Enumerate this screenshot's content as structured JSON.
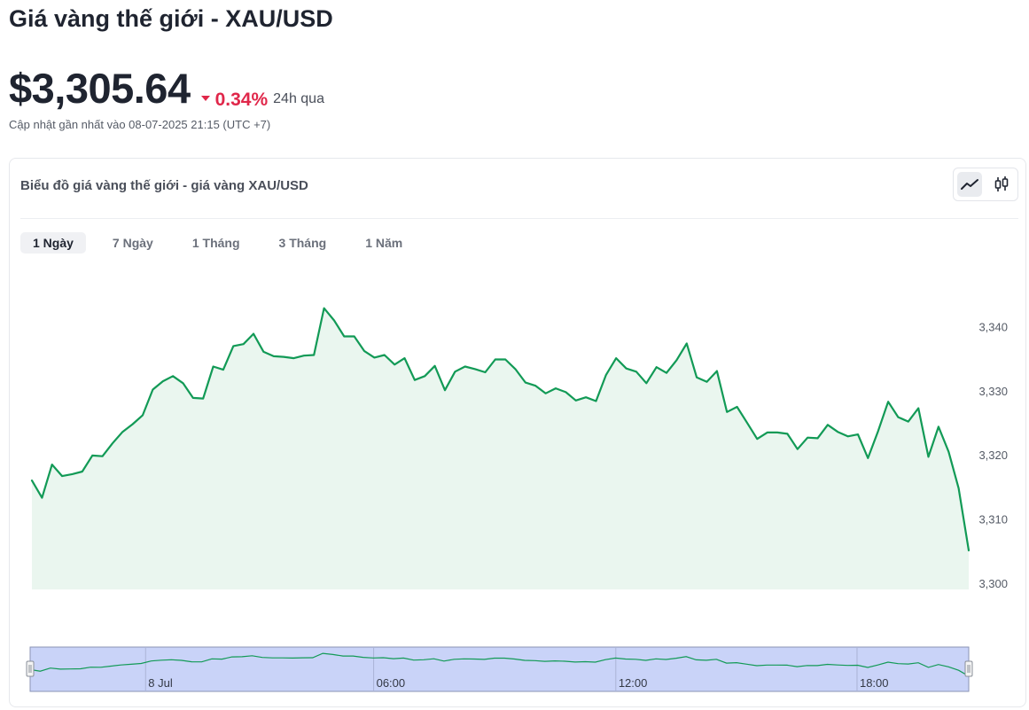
{
  "page": {
    "title": "Giá vàng thế giới - XAU/USD",
    "price": "$3,305.64",
    "change": "0.34%",
    "change_period": "24h qua",
    "updated": "Cập nhật gần nhất vào 08-07-2025 21:15 (UTC +7)"
  },
  "colors": {
    "line": "#129a56",
    "area_fill": "#eaf6ef",
    "negative": "#e0274a",
    "navigator_fill": "#c9d3f8",
    "navigator_border": "#8a93b5"
  },
  "chart_panel": {
    "heading": "Biểu đồ giá vàng thế giới - giá vàng XAU/USD",
    "type_buttons": [
      {
        "icon": "line-chart-icon",
        "active": true
      },
      {
        "icon": "candlestick-icon",
        "active": false
      }
    ],
    "range_tabs": [
      {
        "label": "1 Ngày",
        "active": true
      },
      {
        "label": "7 Ngày",
        "active": false
      },
      {
        "label": "1 Tháng",
        "active": false
      },
      {
        "label": "3 Tháng",
        "active": false
      },
      {
        "label": "1 Năm",
        "active": false
      }
    ]
  },
  "chart_data": {
    "type": "area",
    "y_ticks": [
      "3,340",
      "3,330",
      "3,320",
      "3,310",
      "3,300"
    ],
    "y_tick_values": [
      3340,
      3330,
      3320,
      3310,
      3300
    ],
    "ylim": [
      3299,
      3343
    ],
    "navigator_ticks": [
      "8 Jul",
      "06:00",
      "12:00",
      "18:00"
    ],
    "navigator_tick_positions": [
      0.123,
      0.366,
      0.624,
      0.881
    ],
    "grid": false,
    "values": [
      3316.0,
      3313.3,
      3318.5,
      3316.7,
      3317.0,
      3317.4,
      3319.9,
      3319.8,
      3321.8,
      3323.6,
      3324.8,
      3326.2,
      3330.2,
      3331.5,
      3332.3,
      3331.2,
      3328.9,
      3328.8,
      3333.8,
      3333.3,
      3337.0,
      3337.3,
      3338.9,
      3336.1,
      3335.4,
      3335.3,
      3335.1,
      3335.5,
      3335.6,
      3342.9,
      3341.0,
      3338.5,
      3338.5,
      3336.2,
      3335.2,
      3335.6,
      3334.1,
      3335.1,
      3331.7,
      3332.3,
      3333.9,
      3330.1,
      3333.0,
      3333.8,
      3333.4,
      3332.9,
      3334.9,
      3334.9,
      3333.4,
      3331.3,
      3330.8,
      3329.6,
      3330.4,
      3329.8,
      3328.5,
      3329.0,
      3328.4,
      3332.5,
      3335.1,
      3333.5,
      3333.0,
      3331.2,
      3333.7,
      3332.8,
      3334.8,
      3337.4,
      3332.1,
      3331.4,
      3333.1,
      3326.7,
      3327.5,
      3325.0,
      3322.5,
      3323.5,
      3323.5,
      3323.3,
      3320.9,
      3322.7,
      3322.6,
      3324.7,
      3323.6,
      3322.9,
      3323.2,
      3319.5,
      3323.7,
      3328.3,
      3325.9,
      3325.2,
      3327.3,
      3319.7,
      3324.4,
      3320.5,
      3314.8,
      3305.1
    ]
  }
}
